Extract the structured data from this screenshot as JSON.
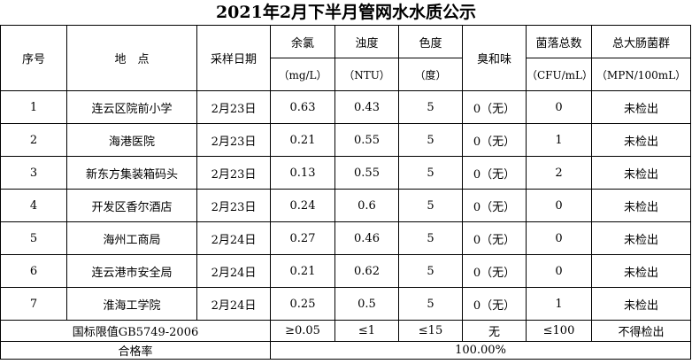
{
  "title": "2021年2月下半月管网水水质公示",
  "table": {
    "header": [
      {
        "name": "序号"
      },
      {
        "name": "地　点"
      },
      {
        "name": "采样日期"
      },
      {
        "name": "余氯",
        "unit": "（mg/L）"
      },
      {
        "name": "浊度",
        "unit": "（NTU）"
      },
      {
        "name": "色度",
        "unit": "（度）"
      },
      {
        "name": "臭和味"
      },
      {
        "name": "菌落总数",
        "unit": "（CFU/mL）"
      },
      {
        "name": "总大肠菌群",
        "unit": "（MPN/100mL）"
      }
    ],
    "rows": [
      [
        "1",
        "连云区院前小学",
        "2月23日",
        "0.63",
        "0.43",
        "5",
        "0（无）",
        "0",
        "未检出"
      ],
      [
        "2",
        "海港医院",
        "2月23日",
        "0.21",
        "0.55",
        "5",
        "0（无）",
        "1",
        "未检出"
      ],
      [
        "3",
        "新东方集装箱码头",
        "2月23日",
        "0.13",
        "0.55",
        "5",
        "0（无）",
        "2",
        "未检出"
      ],
      [
        "4",
        "开发区香尔酒店",
        "2月23日",
        "0.24",
        "0.6",
        "5",
        "0（无）",
        "0",
        "未检出"
      ],
      [
        "5",
        "海州工商局",
        "2月24日",
        "0.27",
        "0.46",
        "5",
        "0（无）",
        "0",
        "未检出"
      ],
      [
        "6",
        "连云港市安全局",
        "2月24日",
        "0.21",
        "0.62",
        "5",
        "0（无）",
        "0",
        "未检出"
      ],
      [
        "7",
        "淮海工学院",
        "2月24日",
        "0.25",
        "0.5",
        "5",
        "0（无）",
        "1",
        "未检出"
      ]
    ],
    "limits": {
      "label": "国标限值GB5749-2006",
      "values": [
        "≥0.05",
        "≤1",
        "≤15",
        "无",
        "≤100",
        "不得检出"
      ]
    },
    "pass_rate": {
      "label": "合格率",
      "value": "100.00%"
    }
  }
}
